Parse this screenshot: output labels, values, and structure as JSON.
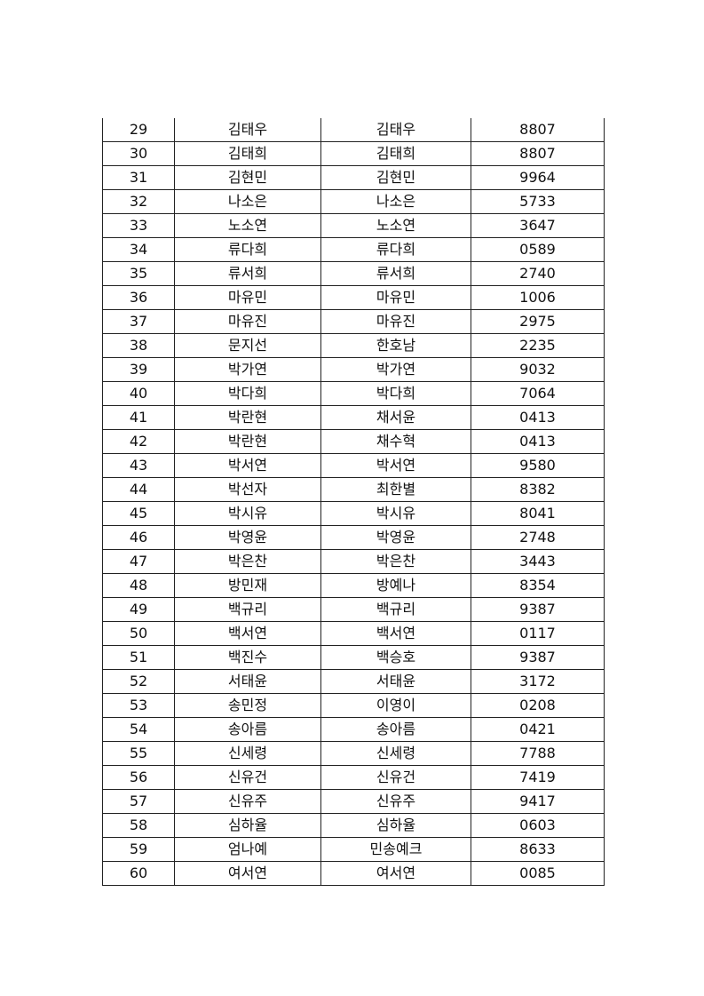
{
  "table": {
    "rows": [
      [
        "29",
        "김태우",
        "김태우",
        "8807"
      ],
      [
        "30",
        "김태희",
        "김태희",
        "8807"
      ],
      [
        "31",
        "김현민",
        "김현민",
        "9964"
      ],
      [
        "32",
        "나소은",
        "나소은",
        "5733"
      ],
      [
        "33",
        "노소연",
        "노소연",
        "3647"
      ],
      [
        "34",
        "류다희",
        "류다희",
        "0589"
      ],
      [
        "35",
        "류서희",
        "류서희",
        "2740"
      ],
      [
        "36",
        "마유민",
        "마유민",
        "1006"
      ],
      [
        "37",
        "마유진",
        "마유진",
        "2975"
      ],
      [
        "38",
        "문지선",
        "한호남",
        "2235"
      ],
      [
        "39",
        "박가연",
        "박가연",
        "9032"
      ],
      [
        "40",
        "박다희",
        "박다희",
        "7064"
      ],
      [
        "41",
        "박란현",
        "채서윤",
        "0413"
      ],
      [
        "42",
        "박란현",
        "채수혁",
        "0413"
      ],
      [
        "43",
        "박서연",
        "박서연",
        "9580"
      ],
      [
        "44",
        "박선자",
        "최한별",
        "8382"
      ],
      [
        "45",
        "박시유",
        "박시유",
        "8041"
      ],
      [
        "46",
        "박영윤",
        "박영윤",
        "2748"
      ],
      [
        "47",
        "박은찬",
        "박은찬",
        "3443"
      ],
      [
        "48",
        "방민재",
        "방예나",
        "8354"
      ],
      [
        "49",
        "백규리",
        "백규리",
        "9387"
      ],
      [
        "50",
        "백서연",
        "백서연",
        "0117"
      ],
      [
        "51",
        "백진수",
        "백승호",
        "9387"
      ],
      [
        "52",
        "서태윤",
        "서태윤",
        "3172"
      ],
      [
        "53",
        "송민정",
        "이영이",
        "0208"
      ],
      [
        "54",
        "송아름",
        "송아름",
        "0421"
      ],
      [
        "55",
        "신세령",
        "신세령",
        "7788"
      ],
      [
        "56",
        "신유건",
        "신유건",
        "7419"
      ],
      [
        "57",
        "신유주",
        "신유주",
        "9417"
      ],
      [
        "58",
        "심하율",
        "심하율",
        "0603"
      ],
      [
        "59",
        "엄나예",
        "민송예크",
        "8633"
      ],
      [
        "60",
        "여서연",
        "여서연",
        "0085"
      ]
    ]
  }
}
